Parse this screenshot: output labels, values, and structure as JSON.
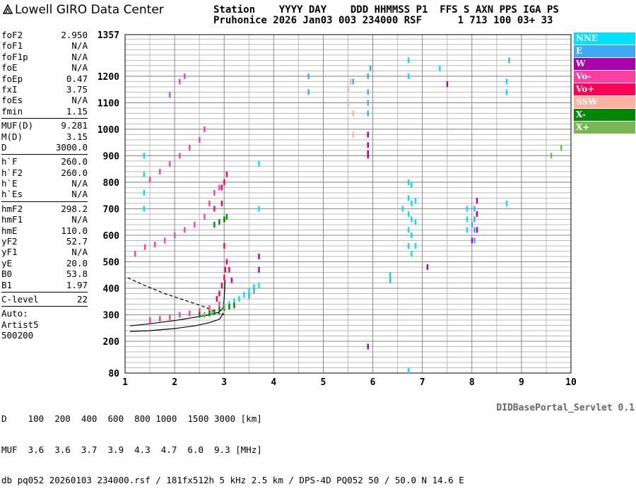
{
  "brand": {
    "name": "Lowell GIRO Data Center",
    "logo_icon": "lowell-logo-icon"
  },
  "header": {
    "line1": "Station    YYYY DAY    DDD HHMMSS P1  FFS S AXN PPS IGA PS",
    "line2": "Pruhonice 2026 Jan03 003 234000 RSF      1 713 100 03+ 33"
  },
  "params": {
    "group1": [
      {
        "label": "foF2",
        "value": "2.950"
      },
      {
        "label": "foF1",
        "value": "N/A"
      },
      {
        "label": "foF1p",
        "value": "N/A"
      },
      {
        "label": "foE",
        "value": "N/A"
      },
      {
        "label": "foEp",
        "value": "0.47"
      },
      {
        "label": "fxI",
        "value": "3.75"
      },
      {
        "label": "foEs",
        "value": "N/A"
      },
      {
        "label": "fmin",
        "value": "1.15"
      }
    ],
    "group2": [
      {
        "label": "MUF(D)",
        "value": "9.281"
      },
      {
        "label": "M(D)",
        "value": "3.15"
      },
      {
        "label": "D",
        "value": "3000.0"
      }
    ],
    "group3": [
      {
        "label": "h`F",
        "value": "260.0"
      },
      {
        "label": "h`F2",
        "value": "260.0"
      },
      {
        "label": "h`E",
        "value": "N/A"
      },
      {
        "label": "h`Es",
        "value": "N/A"
      }
    ],
    "group4": [
      {
        "label": "hmF2",
        "value": "298.2"
      },
      {
        "label": "hmF1",
        "value": "N/A"
      },
      {
        "label": "hmE",
        "value": "110.0"
      },
      {
        "label": "yF2",
        "value": "52.7"
      },
      {
        "label": "yF1",
        "value": "N/A"
      },
      {
        "label": "yE",
        "value": "20.0"
      },
      {
        "label": "B0",
        "value": "53.8"
      },
      {
        "label": "B1",
        "value": "1.97"
      }
    ],
    "group5": [
      {
        "label": "C-level",
        "value": "22"
      }
    ],
    "auto": [
      "Auto:",
      "Artist5",
      "500200"
    ]
  },
  "legend": [
    {
      "label": "NNE",
      "color": "#00e0ff"
    },
    {
      "label": "E",
      "color": "#3fa9f5"
    },
    {
      "label": "W",
      "color": "#aa00aa"
    },
    {
      "label": "Vo-",
      "color": "#ff3fa0"
    },
    {
      "label": "Vo+",
      "color": "#ff0055"
    },
    {
      "label": "SSW",
      "color": "#ffb0a0"
    },
    {
      "label": "X-",
      "color": "#008800"
    },
    {
      "label": "X+",
      "color": "#77b855"
    }
  ],
  "footer": {
    "d_line": "D    100  200  400  600  800 1000  1500 3000 [km]",
    "muf_line": "MUF  3.6  3.6  3.7  3.9  4.3  4.7  6.0  9.3 [MHz]",
    "info_line": "db pq052 20260103 234000.rsf / 181fx512h 5 kHz 2.5 km / DPS-4D PQ052 50 / 50.0 N 14.6 E",
    "servlet": "DIDBasePortal_Servlet 0.1"
  },
  "chart_data": {
    "type": "scatter",
    "title": "",
    "xlabel": "",
    "ylabel": "",
    "xlim": [
      1,
      10
    ],
    "ylim": [
      80,
      1357
    ],
    "x_ticks": [
      1,
      2,
      3,
      4,
      5,
      6,
      7,
      8,
      9,
      10
    ],
    "y_ticks": [
      80,
      200,
      300,
      400,
      500,
      600,
      700,
      800,
      900,
      1000,
      1100,
      1200,
      1357
    ],
    "grid": true,
    "series": [
      {
        "name": "NNE",
        "points": [
          [
            1.38,
            700
          ],
          [
            1.38,
            760
          ],
          [
            1.38,
            830
          ],
          [
            1.38,
            900
          ],
          [
            3.0,
            330
          ],
          [
            3.1,
            340
          ],
          [
            3.2,
            350
          ],
          [
            3.3,
            360
          ],
          [
            3.4,
            375
          ],
          [
            3.5,
            390
          ],
          [
            3.6,
            405
          ],
          [
            3.7,
            410
          ],
          [
            3.7,
            700
          ],
          [
            3.7,
            870
          ],
          [
            6.72,
            1260
          ],
          [
            6.72,
            1200
          ],
          [
            6.72,
            560
          ],
          [
            6.72,
            620
          ],
          [
            6.72,
            680
          ],
          [
            6.72,
            740
          ],
          [
            6.72,
            800
          ],
          [
            6.78,
            530
          ],
          [
            6.78,
            600
          ],
          [
            6.78,
            660
          ],
          [
            6.78,
            720
          ],
          [
            6.78,
            790
          ],
          [
            6.86,
            560
          ],
          [
            6.86,
            650
          ],
          [
            6.86,
            730
          ],
          [
            6.35,
            450
          ],
          [
            6.6,
            700
          ],
          [
            7.9,
            620
          ],
          [
            7.9,
            660
          ],
          [
            7.9,
            700
          ],
          [
            8.7,
            720
          ],
          [
            8.7,
            1140
          ],
          [
            8.7,
            1180
          ],
          [
            7.35,
            1230
          ],
          [
            6.72,
            90
          ]
        ]
      },
      {
        "name": "E",
        "points": [
          [
            5.9,
            1200
          ],
          [
            5.9,
            1140
          ],
          [
            5.9,
            1100
          ],
          [
            5.9,
            1060
          ],
          [
            5.95,
            1230
          ],
          [
            8.05,
            580
          ],
          [
            8.05,
            620
          ],
          [
            8.05,
            660
          ],
          [
            8.05,
            700
          ],
          [
            8.0,
            640
          ],
          [
            3.6,
            390
          ],
          [
            3.5,
            370
          ],
          [
            6.35,
            430
          ],
          [
            8.75,
            1260
          ],
          [
            4.7,
            1200
          ],
          [
            4.7,
            1140
          ],
          [
            5.6,
            1180
          ]
        ]
      },
      {
        "name": "W",
        "points": [
          [
            5.9,
            980
          ],
          [
            5.9,
            940
          ],
          [
            5.9,
            910
          ],
          [
            5.9,
            900
          ],
          [
            5.9,
            180
          ],
          [
            8.1,
            620
          ],
          [
            8.1,
            680
          ],
          [
            8.1,
            730
          ],
          [
            3.7,
            470
          ],
          [
            3.7,
            520
          ],
          [
            7.1,
            480
          ],
          [
            7.5,
            1170
          ],
          [
            8.0,
            580
          ]
        ]
      },
      {
        "name": "Vo-",
        "points": [
          [
            1.2,
            530
          ],
          [
            1.4,
            555
          ],
          [
            1.6,
            565
          ],
          [
            1.8,
            580
          ],
          [
            2.0,
            600
          ],
          [
            2.2,
            620
          ],
          [
            2.4,
            640
          ],
          [
            2.6,
            670
          ],
          [
            1.5,
            810
          ],
          [
            1.7,
            840
          ],
          [
            1.9,
            870
          ],
          [
            2.1,
            900
          ],
          [
            2.3,
            930
          ],
          [
            2.5,
            960
          ],
          [
            2.6,
            1000
          ],
          [
            1.5,
            280
          ],
          [
            1.7,
            285
          ],
          [
            1.9,
            290
          ],
          [
            2.1,
            300
          ],
          [
            2.3,
            305
          ],
          [
            2.5,
            315
          ],
          [
            2.7,
            325
          ],
          [
            2.9,
            340
          ],
          [
            2.2,
            1200
          ],
          [
            2.1,
            1180
          ],
          [
            1.9,
            1130
          ],
          [
            2.7,
            720
          ],
          [
            2.8,
            760
          ],
          [
            2.9,
            780
          ]
        ]
      },
      {
        "name": "Vo+",
        "points": [
          [
            2.85,
            360
          ],
          [
            2.9,
            380
          ],
          [
            2.95,
            410
          ],
          [
            3.0,
            440
          ],
          [
            3.02,
            470
          ],
          [
            3.05,
            500
          ],
          [
            3.1,
            470
          ],
          [
            3.15,
            430
          ],
          [
            2.95,
            780
          ],
          [
            3.0,
            800
          ],
          [
            3.05,
            830
          ],
          [
            3.0,
            560
          ],
          [
            2.95,
            720
          ],
          [
            2.8,
            700
          ],
          [
            3.0,
            660
          ]
        ]
      },
      {
        "name": "SSW",
        "points": [
          [
            5.5,
            1100
          ],
          [
            5.55,
            1180
          ],
          [
            5.6,
            980
          ],
          [
            5.6,
            1060
          ],
          [
            5.5,
            1150
          ]
        ]
      },
      {
        "name": "X-",
        "points": [
          [
            2.5,
            300
          ],
          [
            2.7,
            305
          ],
          [
            2.8,
            310
          ],
          [
            2.9,
            320
          ],
          [
            3.0,
            325
          ],
          [
            3.1,
            330
          ],
          [
            3.2,
            335
          ],
          [
            2.8,
            640
          ],
          [
            2.9,
            650
          ],
          [
            3.0,
            660
          ],
          [
            3.05,
            670
          ]
        ]
      },
      {
        "name": "X+",
        "points": [
          [
            2.6,
            300
          ],
          [
            2.75,
            310
          ],
          [
            3.0,
            330
          ],
          [
            9.6,
            900
          ],
          [
            9.8,
            930
          ]
        ]
      }
    ],
    "profile_curves": {
      "solid_upper": [
        [
          1.1,
          258
        ],
        [
          1.5,
          266
        ],
        [
          2.0,
          278
        ],
        [
          2.4,
          290
        ],
        [
          2.7,
          300
        ],
        [
          2.9,
          310
        ],
        [
          2.98,
          325
        ],
        [
          3.0,
          360
        ],
        [
          3.02,
          430
        ]
      ],
      "solid_lower": [
        [
          1.1,
          237
        ],
        [
          1.5,
          240
        ],
        [
          2.0,
          248
        ],
        [
          2.4,
          258
        ],
        [
          2.7,
          270
        ],
        [
          2.9,
          283
        ],
        [
          2.95,
          295
        ],
        [
          2.98,
          308
        ]
      ],
      "dashed": [
        [
          1.05,
          440
        ],
        [
          1.4,
          410
        ],
        [
          1.8,
          380
        ],
        [
          2.2,
          355
        ],
        [
          2.6,
          330
        ],
        [
          2.9,
          305
        ],
        [
          3.0,
          300
        ]
      ]
    }
  }
}
